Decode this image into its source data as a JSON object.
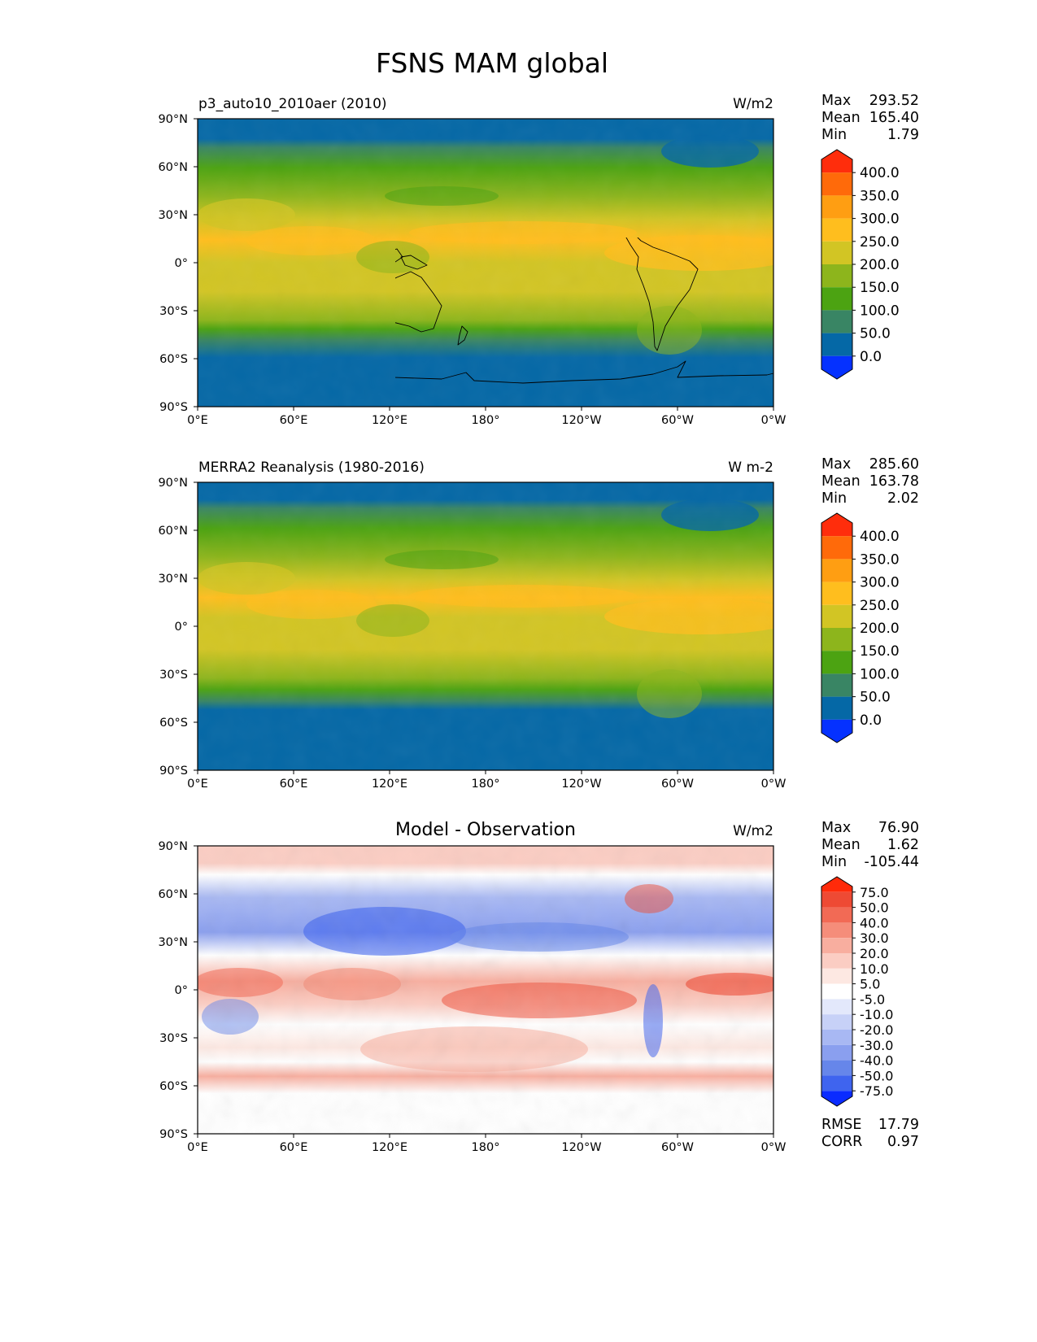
{
  "figure": {
    "title": "FSNS MAM global"
  },
  "chart_data": [
    {
      "type": "heatmap",
      "title_left": "p3_auto10_2010aer (2010)",
      "title_right": "W/m2",
      "xticks": [
        "0°E",
        "60°E",
        "120°E",
        "180°",
        "120°W",
        "60°W",
        "0°W"
      ],
      "yticks": [
        "90°N",
        "60°N",
        "30°N",
        "0°",
        "30°S",
        "60°S",
        "90°S"
      ],
      "stats": [
        {
          "label": "Max",
          "value": "293.52"
        },
        {
          "label": "Mean",
          "value": "165.40"
        },
        {
          "label": "Min",
          "value": "1.79"
        }
      ],
      "colorbar": {
        "labels": [
          "400.0",
          "350.0",
          "300.0",
          "250.0",
          "200.0",
          "150.0",
          "100.0",
          "50.0",
          "0.0"
        ],
        "colors_top_to_bottom": [
          "#ff2d0c",
          "#ff6a0a",
          "#ff9e12",
          "#ffbe1e",
          "#d2c524",
          "#8db51c",
          "#4ca312",
          "#398564",
          "#0568a6",
          "#0531ff"
        ]
      }
    },
    {
      "type": "heatmap",
      "title_left": "MERRA2 Reanalysis (1980-2016)",
      "title_right": "W m-2",
      "xticks": [
        "0°E",
        "60°E",
        "120°E",
        "180°",
        "120°W",
        "60°W",
        "0°W"
      ],
      "yticks": [
        "90°N",
        "60°N",
        "30°N",
        "0°",
        "30°S",
        "60°S",
        "90°S"
      ],
      "stats": [
        {
          "label": "Max",
          "value": "285.60"
        },
        {
          "label": "Mean",
          "value": "163.78"
        },
        {
          "label": "Min",
          "value": "2.02"
        }
      ],
      "colorbar": {
        "labels": [
          "400.0",
          "350.0",
          "300.0",
          "250.0",
          "200.0",
          "150.0",
          "100.0",
          "50.0",
          "0.0"
        ],
        "colors_top_to_bottom": [
          "#ff2d0c",
          "#ff6a0a",
          "#ff9e12",
          "#ffbe1e",
          "#d2c524",
          "#8db51c",
          "#4ca312",
          "#398564",
          "#0568a6",
          "#0531ff"
        ]
      }
    },
    {
      "type": "heatmap",
      "title_center": "Model - Observation",
      "title_right": "W/m2",
      "xticks": [
        "0°E",
        "60°E",
        "120°E",
        "180°",
        "120°W",
        "60°W",
        "0°W"
      ],
      "yticks": [
        "90°N",
        "60°N",
        "30°N",
        "0°",
        "30°S",
        "60°S",
        "90°S"
      ],
      "stats": [
        {
          "label": "Max",
          "value": "76.90"
        },
        {
          "label": "Mean",
          "value": "1.62"
        },
        {
          "label": "Min",
          "value": "-105.44"
        }
      ],
      "colorbar": {
        "labels": [
          "75.0",
          "50.0",
          "40.0",
          "30.0",
          "20.0",
          "10.0",
          "5.0",
          "-5.0",
          "-10.0",
          "-20.0",
          "-30.0",
          "-40.0",
          "-50.0",
          "-75.0"
        ],
        "colors_top_to_bottom": [
          "#ff2a0a",
          "#ee4a34",
          "#f26a55",
          "#f58d7a",
          "#f8ae9f",
          "#fbcdc3",
          "#fde8e2",
          "#ffffff",
          "#e3e8fb",
          "#c7d1f7",
          "#a8b8f3",
          "#8a9fef",
          "#6686ea",
          "#3f64ef",
          "#0a2bff"
        ]
      },
      "footer_stats": [
        {
          "label": "RMSE",
          "value": "17.79"
        },
        {
          "label": "CORR",
          "value": "0.97"
        }
      ]
    }
  ]
}
